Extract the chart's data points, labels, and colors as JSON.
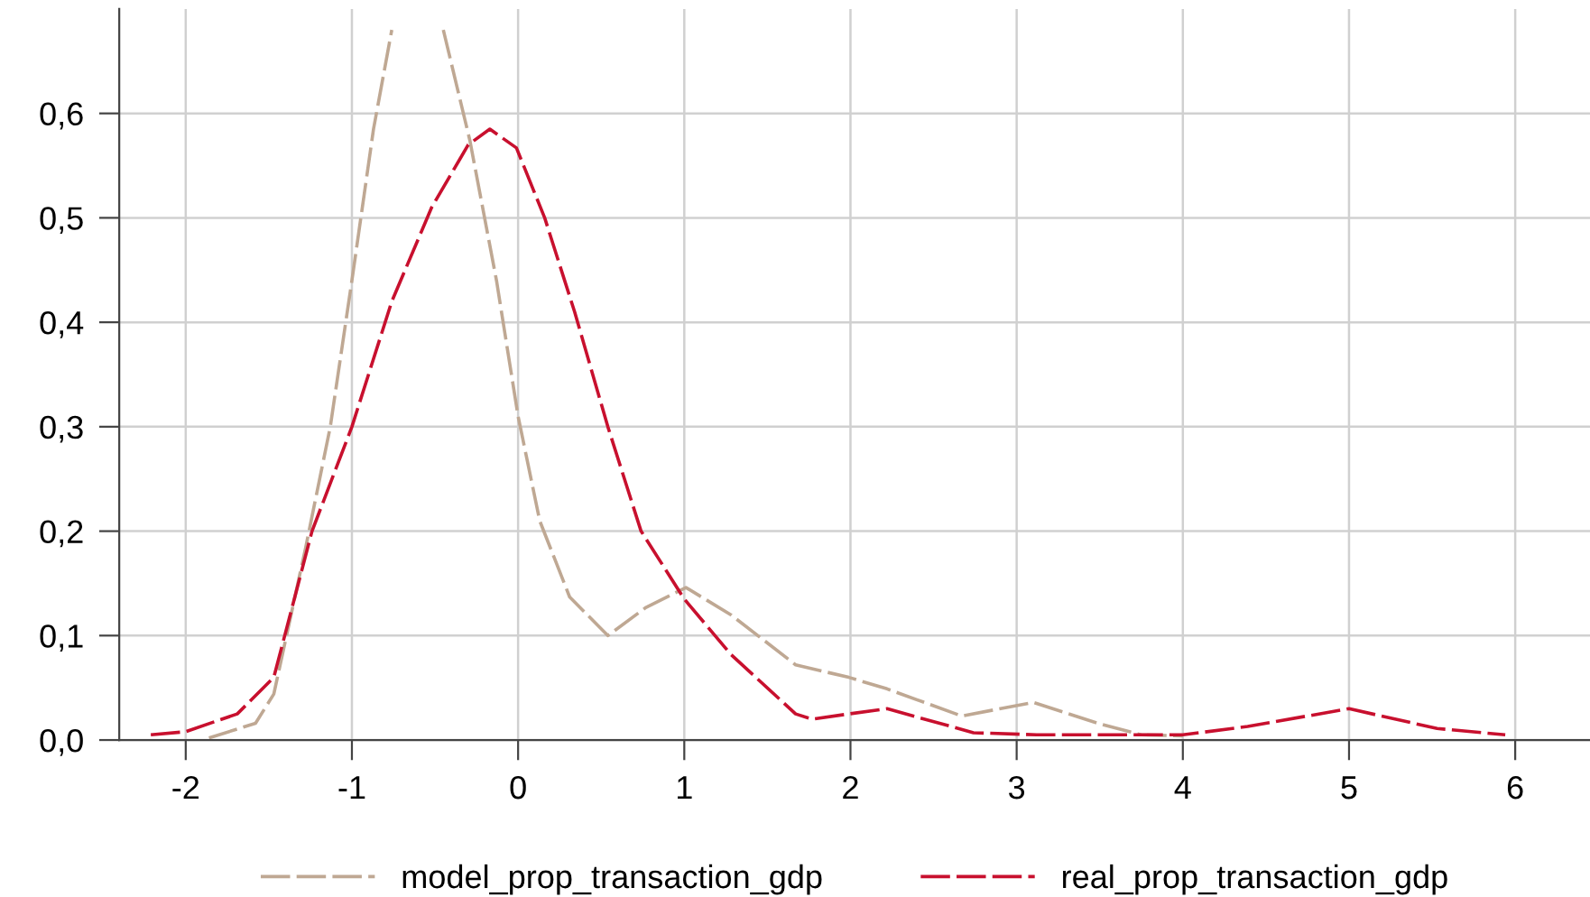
{
  "chart_data": {
    "type": "line",
    "line_style": "dashed",
    "marker": "none",
    "grid": true,
    "legend": "bottom",
    "xlim": [
      -2.4,
      6.45
    ],
    "ylim": [
      0,
      0.7
    ],
    "xticks": [
      -2,
      -1,
      0,
      1,
      2,
      3,
      4,
      5,
      6
    ],
    "yticks": [
      {
        "value": 0,
        "label": "0,0"
      },
      {
        "value": 0.1,
        "label": "0,1"
      },
      {
        "value": 0.2,
        "label": "0,2"
      },
      {
        "value": 0.3,
        "label": "0,3"
      },
      {
        "value": 0.4,
        "label": "0,4"
      },
      {
        "value": 0.5,
        "label": "0,5"
      },
      {
        "value": 0.6,
        "label": "0,6"
      }
    ],
    "series": [
      {
        "name": "model_prop_transaction_gdp",
        "color": "#bfa893",
        "x": [
          -1.86,
          -1.58,
          -1.47,
          -1.28,
          -1.13,
          -1.0,
          -0.87,
          -0.76,
          -0.6,
          -0.45,
          -0.29,
          -0.13,
          0,
          0.13,
          0.31,
          0.54,
          0.77,
          1.01,
          1.28,
          1.67,
          1.99,
          2.22,
          2.67,
          3.1,
          3.49,
          3.75,
          4.0
        ],
        "values": [
          0.002,
          0.016,
          0.044,
          0.183,
          0.3,
          0.44,
          0.585,
          0.68,
          null,
          0.68,
          0.574,
          0.44,
          0.31,
          0.21,
          0.137,
          0.1,
          0.127,
          0.146,
          0.12,
          0.072,
          0.06,
          0.049,
          0.023,
          0.036,
          0.016,
          0.005,
          0.004
        ]
      },
      {
        "name": "real_prop_transaction_gdp",
        "color": "#c8102e",
        "x": [
          -2.21,
          -2.0,
          -1.69,
          -1.47,
          -1.24,
          -1.0,
          -0.76,
          -0.52,
          -0.3,
          -0.17,
          -0.01,
          0.16,
          0.34,
          0.54,
          0.74,
          1.0,
          1.28,
          1.67,
          1.77,
          1.99,
          2.22,
          2.74,
          3.12,
          4.0,
          4.39,
          5.0,
          5.53,
          5.94
        ],
        "values": [
          0.005,
          0.008,
          0.025,
          0.06,
          0.2,
          0.3,
          0.42,
          0.51,
          0.57,
          0.585,
          0.567,
          0.5,
          0.41,
          0.3,
          0.2,
          0.135,
          0.082,
          0.025,
          0.02,
          0.025,
          0.03,
          0.007,
          0.005,
          0.005,
          0.013,
          0.03,
          0.011,
          0.005
        ]
      }
    ]
  }
}
